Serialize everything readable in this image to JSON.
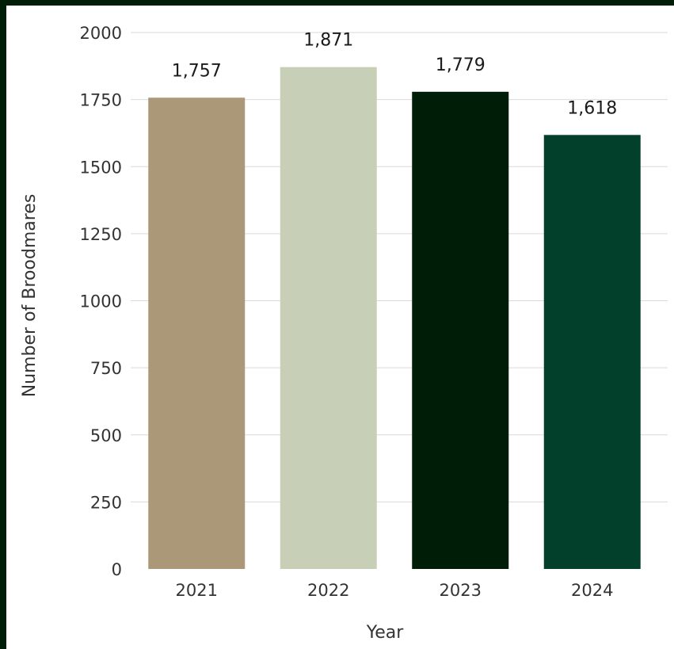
{
  "chart_data": {
    "type": "bar",
    "categories": [
      "2021",
      "2022",
      "2023",
      "2024"
    ],
    "values": [
      1757,
      1871,
      1779,
      1618
    ],
    "data_labels": [
      "1,757",
      "1,871",
      "1,779",
      "1,618"
    ],
    "colors": [
      "#ab9879",
      "#c7d0b6",
      "#001d07",
      "#02402c"
    ],
    "xlabel": "Year",
    "ylabel": "Number of Broodmares",
    "ylim": [
      0,
      2000
    ],
    "yticks": [
      0,
      250,
      500,
      750,
      1000,
      1250,
      1500,
      1750,
      2000
    ],
    "ytick_labels": [
      "0",
      "250",
      "500",
      "750",
      "1000",
      "1250",
      "1500",
      "1750",
      "2000"
    ],
    "grid": true,
    "legend": "none"
  }
}
